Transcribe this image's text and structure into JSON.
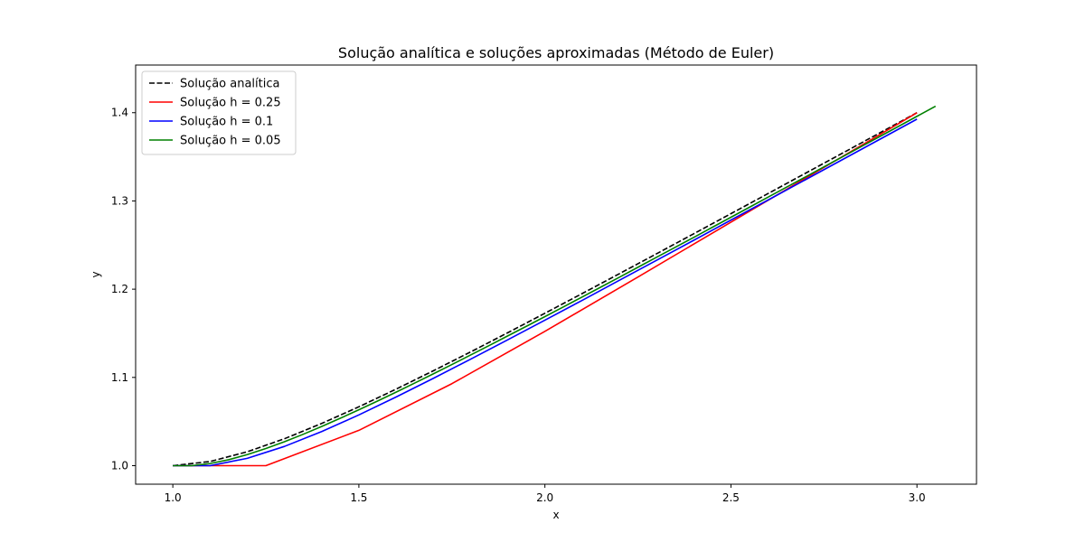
{
  "chart_data": {
    "type": "line",
    "title": "Solução analítica e soluções aproximadas (Método de Euler)",
    "xlabel": "x",
    "ylabel": "y",
    "xlim": [
      0.9,
      3.16
    ],
    "ylim": [
      0.979,
      1.454
    ],
    "xticks": [
      1.0,
      1.5,
      2.0,
      2.5,
      3.0
    ],
    "xtick_labels": [
      "1.0",
      "1.5",
      "2.0",
      "2.5",
      "3.0"
    ],
    "yticks": [
      1.0,
      1.1,
      1.2,
      1.3,
      1.4
    ],
    "ytick_labels": [
      "1.0",
      "1.1",
      "1.2",
      "1.3",
      "1.4"
    ],
    "grid": false,
    "legend_position": "top-left",
    "series": [
      {
        "name": "Solução analítica",
        "color": "#000000",
        "dash": "dashed",
        "x": [
          1.0,
          1.1,
          1.2,
          1.3,
          1.4,
          1.5,
          1.6,
          1.7,
          1.8,
          1.9,
          2.0,
          2.1,
          2.2,
          2.3,
          2.4,
          2.5,
          2.6,
          2.7,
          2.8,
          2.9,
          3.0
        ],
        "y": [
          1.0,
          1.0047,
          1.0157,
          1.0305,
          1.0478,
          1.0667,
          1.0867,
          1.1075,
          1.1288,
          1.1506,
          1.1727,
          1.195,
          1.2175,
          1.2401,
          1.2628,
          1.2856,
          1.3084,
          1.3313,
          1.3542,
          1.3771,
          1.4
        ]
      },
      {
        "name": "Solução h = 0.25",
        "color": "#ff0000",
        "dash": "solid",
        "x": [
          1.0,
          1.25,
          1.5,
          1.75,
          2.0,
          2.25,
          2.5,
          2.75,
          3.0
        ],
        "y": [
          1.0,
          1.0,
          1.04,
          1.0929,
          1.1522,
          1.2138,
          1.2759,
          1.338,
          1.3999
        ]
      },
      {
        "name": "Solução h = 0.1",
        "color": "#0000ff",
        "dash": "solid",
        "x": [
          1.0,
          1.1,
          1.2,
          1.3,
          1.4,
          1.5,
          1.6,
          1.7,
          1.8,
          1.9,
          2.0,
          2.1,
          2.2,
          2.3,
          2.4,
          2.5,
          2.6,
          2.7,
          2.8,
          2.9,
          3.0
        ],
        "y": [
          1.0,
          1.0,
          1.0083,
          1.0218,
          1.0386,
          1.0575,
          1.0778,
          1.0989,
          1.1206,
          1.1426,
          1.1649,
          1.1873,
          1.21,
          1.2327,
          1.2554,
          1.2783,
          1.3011,
          1.324,
          1.3469,
          1.3698,
          1.3927
        ]
      },
      {
        "name": "Solução h = 0.05",
        "color": "#008000",
        "dash": "solid",
        "x": [
          1.0,
          1.05,
          1.1,
          1.15,
          1.2,
          1.25,
          1.3,
          1.35,
          1.4,
          1.45,
          1.5,
          1.55,
          1.6,
          1.65,
          1.7,
          1.75,
          1.8,
          1.85,
          1.9,
          1.95,
          2.0,
          2.05,
          2.1,
          2.15,
          2.2,
          2.25,
          2.3,
          2.35,
          2.4,
          2.45,
          2.5,
          2.55,
          2.6,
          2.65,
          2.7,
          2.75,
          2.8,
          2.85,
          2.9,
          2.95,
          3.0,
          3.05
        ],
        "y": [
          1.0,
          1.0,
          1.0024,
          1.0067,
          1.0125,
          1.0194,
          1.0271,
          1.0355,
          1.0444,
          1.0537,
          1.0633,
          1.0732,
          1.0833,
          1.0936,
          1.104,
          1.1146,
          1.1253,
          1.1361,
          1.147,
          1.1579,
          1.1689,
          1.18,
          1.1911,
          1.2023,
          1.2135,
          1.2248,
          1.2361,
          1.2474,
          1.2587,
          1.2701,
          1.2815,
          1.2929,
          1.3043,
          1.3157,
          1.3271,
          1.3386,
          1.35,
          1.3615,
          1.373,
          1.3844,
          1.3959,
          1.4074
        ]
      }
    ]
  }
}
